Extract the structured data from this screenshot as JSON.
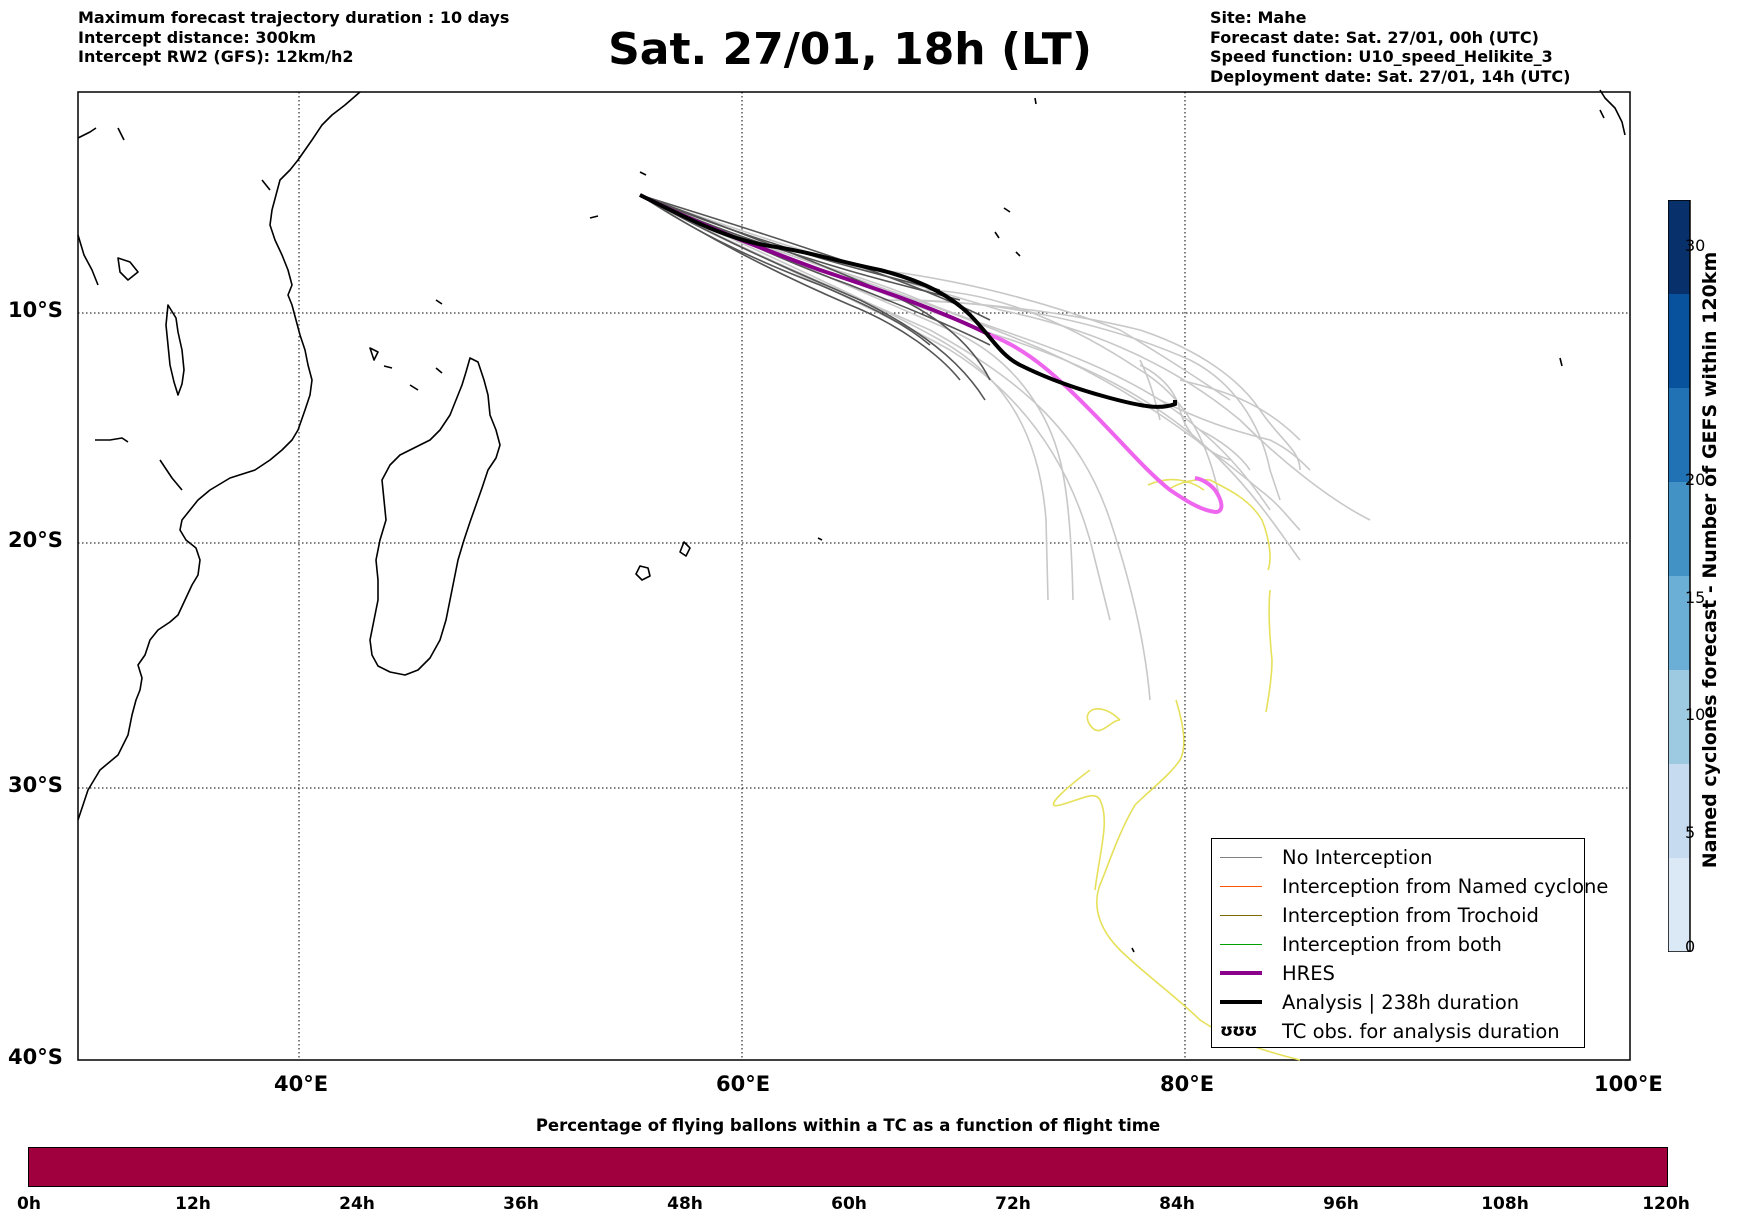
{
  "header": {
    "left_lines": [
      "Maximum forecast trajectory duration : 10 days",
      "Intercept distance: 300km",
      "Intercept RW2 (GFS):  12km/h2"
    ],
    "title": "Sat. 27/01, 18h (LT)",
    "right_lines": [
      "Site: Mahe",
      "Forecast date: Sat. 27/01, 00h (UTC)",
      "Speed function: U10_speed_Helikite_3",
      "Deployment date: Sat. 27/01, 14h (UTC)"
    ]
  },
  "map": {
    "lon_range": [
      30,
      100
    ],
    "lat_range": [
      -40,
      -1
    ],
    "lat_labels": [
      "10°S",
      "20°S",
      "30°S",
      "40°S"
    ],
    "lon_labels": [
      "40°E",
      "60°E",
      "80°E",
      "100°E"
    ],
    "grid": "dotted"
  },
  "legend": {
    "items": [
      {
        "label": "No Interception",
        "color": "#808080",
        "style": "thin"
      },
      {
        "label": "Interception from Named cyclone",
        "color": "#ff5500",
        "style": "thin"
      },
      {
        "label": "Interception from Trochoid",
        "color": "#7a6a00",
        "style": "thin"
      },
      {
        "label": "Interception from both",
        "color": "#00a000",
        "style": "thin"
      },
      {
        "label": "HRES",
        "color": "#8b008b",
        "style": "thick"
      },
      {
        "label": "Analysis | 238h duration",
        "color": "#000000",
        "style": "thick"
      }
    ],
    "tc_obs_label": "TC obs. for analysis duration",
    "tc_glyph": "ʊʊʊ"
  },
  "colorbar": {
    "title": "Named cyclones forecast - Number of GEFS within 120km",
    "ticks": [
      "0",
      "5",
      "10",
      "15",
      "20",
      "30"
    ],
    "colors": [
      "#dbe8f6",
      "#c6dbef",
      "#9ecae1",
      "#6baed6",
      "#4292c6",
      "#2171b5",
      "#08519c",
      "#08306b"
    ]
  },
  "flight_time": {
    "title": "Percentage of flying ballons within a TC as a function of flight time",
    "labels": [
      "0h",
      "12h",
      "24h",
      "36h",
      "48h",
      "60h",
      "72h",
      "84h",
      "96h",
      "108h",
      "120h"
    ],
    "bar_color": "#a0003d"
  },
  "colors": {
    "ensemble_dark": "#555555",
    "ensemble_light": "#c8c8c8",
    "hres": "#8b008b",
    "hres_late": "#ee66ee",
    "analysis": "#000000",
    "tc_obs": "#e6e05a"
  }
}
